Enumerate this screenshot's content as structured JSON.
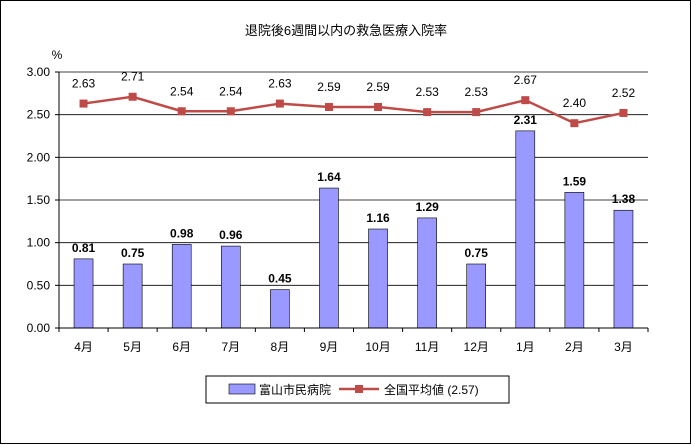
{
  "chart_data": {
    "type": "bar",
    "title": "退院後6週間以内の救急医療入院率",
    "ylabel": "%",
    "ylim": [
      0,
      3
    ],
    "y_ticks": [
      "0.00",
      "0.50",
      "1.00",
      "1.50",
      "2.00",
      "2.50",
      "3.00"
    ],
    "grid": true,
    "legend_position": "bottom",
    "categories": [
      "4月",
      "5月",
      "6月",
      "7月",
      "8月",
      "9月",
      "10月",
      "11月",
      "12月",
      "1月",
      "2月",
      "3月"
    ],
    "series": [
      {
        "name": "富山市民病院",
        "type": "bar",
        "color": "#9999ff",
        "values": [
          0.81,
          0.75,
          0.98,
          0.96,
          0.45,
          1.64,
          1.16,
          1.29,
          0.75,
          2.31,
          1.59,
          1.38
        ],
        "labels": [
          "0.81",
          "0.75",
          "0.98",
          "0.96",
          "0.45",
          "1.64",
          "1.16",
          "1.29",
          "0.75",
          "2.31",
          "1.59",
          "1.38"
        ]
      },
      {
        "name": "全国平均値 (2.57)",
        "type": "line",
        "color": "#be4b48",
        "values": [
          2.63,
          2.71,
          2.54,
          2.54,
          2.63,
          2.59,
          2.59,
          2.53,
          2.53,
          2.67,
          2.4,
          2.52
        ],
        "labels": [
          "2.63",
          "2.71",
          "2.54",
          "2.54",
          "2.63",
          "2.59",
          "2.59",
          "2.53",
          "2.53",
          "2.67",
          "2.40",
          "2.52"
        ]
      }
    ]
  }
}
